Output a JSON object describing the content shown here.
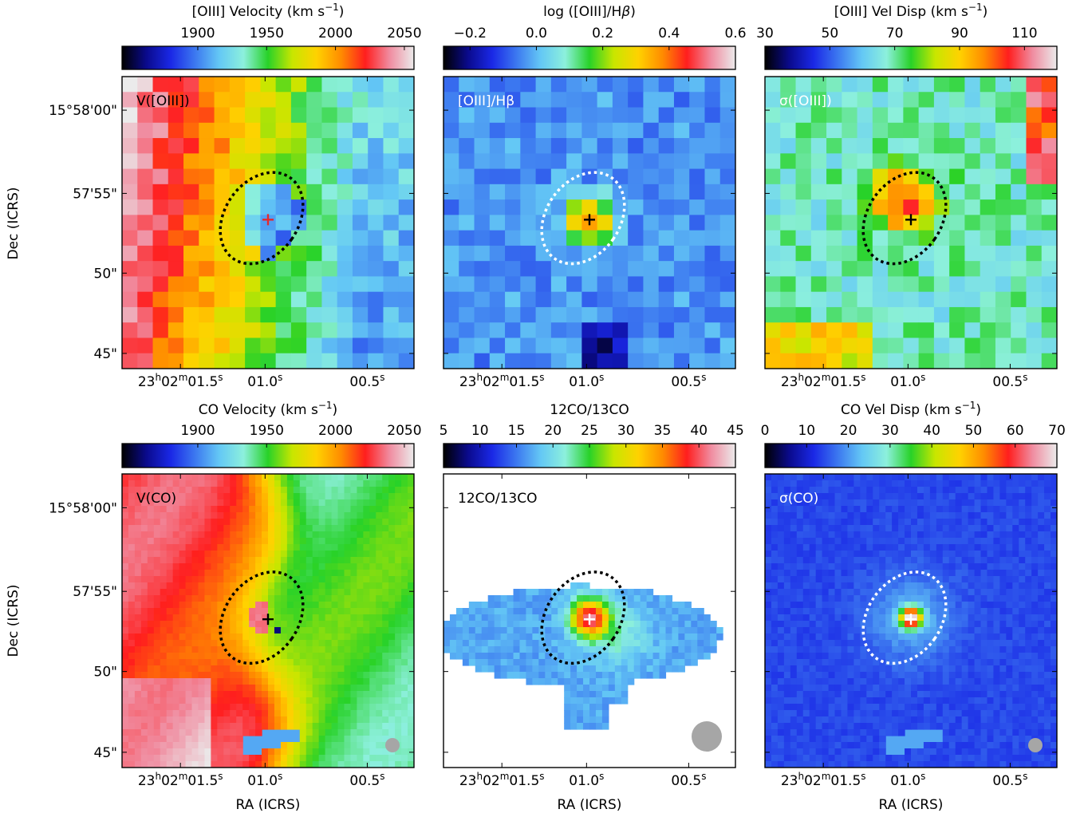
{
  "figure": {
    "ra_label": "RA (ICRS)",
    "dec_label": "Dec (ICRS)",
    "ra_ticks": [
      "23h02m01.5s",
      "01.0s",
      "00.5s"
    ],
    "dec_ticks": [
      "15°58'00\"",
      "57'55\"",
      "50\"",
      "45\""
    ],
    "colors": {
      "colormap": [
        "#000000",
        "#0a0a8c",
        "#1a28e6",
        "#3c78f0",
        "#64c8f5",
        "#8cf0dc",
        "#28d228",
        "#c8e600",
        "#ffd200",
        "#ff8c00",
        "#ff1e1e",
        "#f08ca0",
        "#ebebeb"
      ],
      "red_cross": "#e6282d",
      "mask": "#ffffff",
      "beam": "#a6a6a6"
    }
  },
  "chart_data": [
    {
      "type": "heatmap",
      "panel": "V([OIII])",
      "colorbar_label": "[OIII] Velocity (km s$^{-1}$)",
      "colorbar_label_parts": [
        "[OIII] Velocity (km s",
        "−1",
        ")"
      ],
      "colorbar_ticks": [
        "1900",
        "1950",
        "2000",
        "2050"
      ],
      "colorbar_tick_values": [
        1900,
        1950,
        2000,
        2050
      ],
      "range": [
        1845,
        2057
      ],
      "label_color": "#000000",
      "marker": {
        "symbol": "+",
        "color": "#e6282d"
      },
      "ellipse_color": "#000000",
      "beam": false,
      "notes": "redshifted (~2000) to the east/left, blueshifted (~1880) to the west/right"
    },
    {
      "type": "heatmap",
      "panel": "[OIII]/Hβ",
      "colorbar_label": "log ([OIII]/Hβ)",
      "colorbar_label_parts": [
        "log ([OIII]/H",
        "β",
        ")"
      ],
      "colorbar_ticks": [
        "−0.2",
        "0.0",
        "0.2",
        "0.4",
        "0.6"
      ],
      "colorbar_tick_values": [
        -0.2,
        0.0,
        0.2,
        0.4,
        0.6
      ],
      "range": [
        -0.28,
        0.6
      ],
      "label_color": "#ffffff",
      "marker": {
        "symbol": "+",
        "color": "#000000"
      },
      "ellipse_color": "#ffffff",
      "beam": false,
      "notes": "peak ~0.5 at nucleus, ~-0.1 elsewhere"
    },
    {
      "type": "heatmap",
      "panel": "σ([OIII])",
      "colorbar_label": "[OIII] Vel Disp (km s$^{-1}$)",
      "colorbar_label_parts": [
        "[OIII] Vel Disp (km s",
        "−1",
        ")"
      ],
      "colorbar_ticks": [
        "30",
        "50",
        "70",
        "90",
        "110"
      ],
      "colorbar_tick_values": [
        30,
        50,
        70,
        90,
        110
      ],
      "range": [
        30,
        120
      ],
      "label_color": "#ffffff",
      "marker": {
        "symbol": "+",
        "color": "#000000"
      },
      "ellipse_color": "#000000",
      "beam": false,
      "notes": "peak ~105 around nucleus, ~55 background"
    },
    {
      "type": "heatmap",
      "panel": "V(CO)",
      "colorbar_label": "CO Velocity (km s$^{-1}$)",
      "colorbar_label_parts": [
        "CO Velocity (km s",
        "−1",
        ")"
      ],
      "colorbar_ticks": [
        "1900",
        "1950",
        "2000",
        "2050"
      ],
      "colorbar_tick_values": [
        1900,
        1950,
        2000,
        2050
      ],
      "range": [
        1845,
        2057
      ],
      "label_color": "#000000",
      "marker": {
        "symbol": "+",
        "color": "#000000"
      },
      "ellipse_color": "#000000",
      "beam": true,
      "notes": "smooth velocity field, ~2040 at east, ~1920 at west"
    },
    {
      "type": "heatmap",
      "panel": "12CO/13CO",
      "colorbar_label": "12CO/13CO",
      "colorbar_label_parts": [
        "12CO/13CO",
        "",
        ""
      ],
      "colorbar_ticks": [
        "5",
        "10",
        "15",
        "20",
        "25",
        "30",
        "35",
        "40",
        "45"
      ],
      "colorbar_tick_values": [
        5,
        10,
        15,
        20,
        25,
        30,
        35,
        40,
        45
      ],
      "range": [
        5,
        45
      ],
      "label_color": "#000000",
      "marker": {
        "symbol": "+",
        "color": "#ffffff"
      },
      "ellipse_color": "#000000",
      "beam": true,
      "notes": "peak ~40 at nucleus, ~15 in outer disk, blank outside"
    },
    {
      "type": "heatmap",
      "panel": "σ(CO)",
      "colorbar_label": "CO Vel Disp (km s$^{-1}$)",
      "colorbar_label_parts": [
        "CO Vel Disp (km s",
        "−1",
        ")"
      ],
      "colorbar_ticks": [
        "0",
        "10",
        "20",
        "30",
        "40",
        "50",
        "60",
        "70"
      ],
      "colorbar_tick_values": [
        0,
        10,
        20,
        30,
        40,
        50,
        60,
        70
      ],
      "range": [
        0,
        70
      ],
      "label_color": "#ffffff",
      "marker": {
        "symbol": "+",
        "color": "#ffffff"
      },
      "ellipse_color": "#ffffff",
      "beam": true,
      "notes": "peak ~65 at nucleus, ~12 background"
    }
  ]
}
